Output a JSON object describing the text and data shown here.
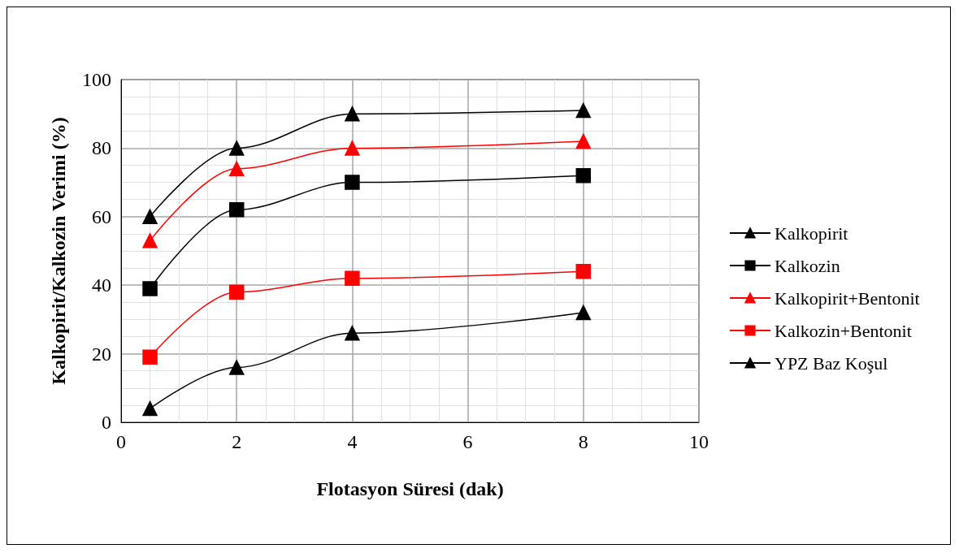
{
  "chart_data": {
    "type": "line",
    "xlabel": "Flotasyon Süresi (dak)",
    "ylabel": "Kalkopirit/Kalkozin Verimi (%)",
    "x": [
      0.5,
      2,
      4,
      8
    ],
    "series": [
      {
        "name": "Kalkopirit",
        "color": "#000000",
        "marker": "triangle",
        "values": [
          60,
          80,
          90,
          91
        ]
      },
      {
        "name": "Kalkozin",
        "color": "#000000",
        "marker": "square",
        "values": [
          39,
          62,
          70,
          72
        ]
      },
      {
        "name": "Kalkopirit+Bentonit",
        "color": "#ff0000",
        "marker": "triangle",
        "values": [
          53,
          74,
          80,
          82
        ]
      },
      {
        "name": "Kalkozin+Bentonit",
        "color": "#ff0000",
        "marker": "square",
        "values": [
          19,
          38,
          42,
          44
        ]
      },
      {
        "name": "YPZ Baz Koşul",
        "color": "#000000",
        "marker": "triangle",
        "values": [
          4,
          16,
          26,
          32
        ]
      }
    ],
    "xlim": [
      0,
      10
    ],
    "xticks": [
      0,
      2,
      4,
      6,
      8,
      10
    ],
    "ylim": [
      0,
      100
    ],
    "yticks": [
      0,
      20,
      40,
      60,
      80,
      100
    ],
    "grid": true,
    "legend": "right",
    "line_style": "solid"
  }
}
